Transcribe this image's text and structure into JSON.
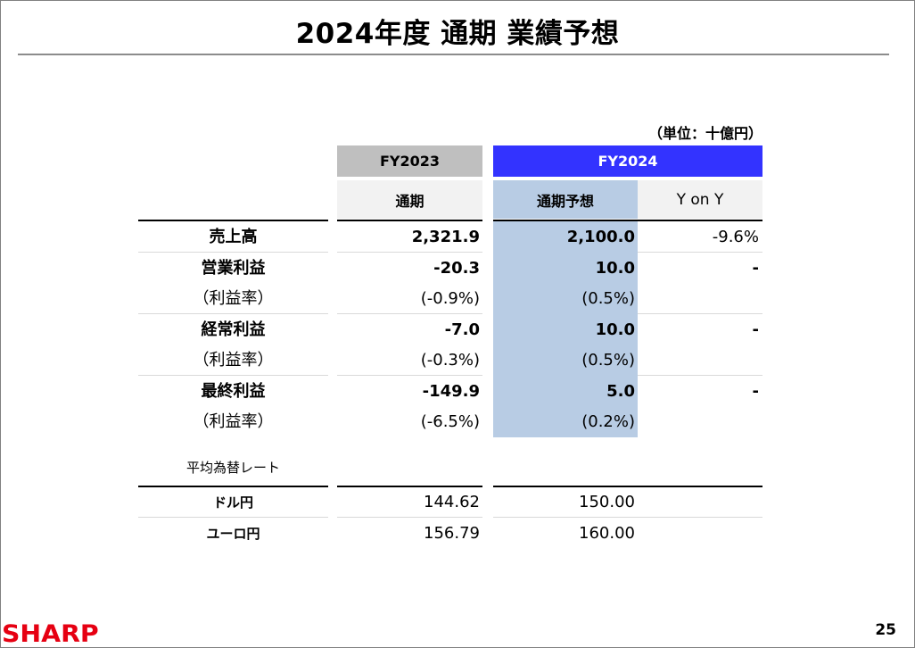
{
  "slide": {
    "title": "2024年度 通期 業績予想",
    "unit": "（単位：十億円）",
    "page_number": "25",
    "logo_text": "SHARP"
  },
  "columns": {
    "fy2023": "FY2023",
    "fy2024": "FY2024",
    "fy2023_sub": "通期",
    "fy2024_sub": "通期予想",
    "yoy": "Y on Y"
  },
  "rows": [
    {
      "label": "売上高",
      "fy2023": "2,321.9",
      "fy2024": "2,100.0",
      "yoy": "-9.6%",
      "bold": true
    },
    {
      "label": "営業利益",
      "fy2023": "-20.3",
      "fy2024": "10.0",
      "yoy": "-",
      "bold": true
    },
    {
      "label": "（利益率）",
      "fy2023": "(-0.9%)",
      "fy2024": "(0.5%)",
      "yoy": "",
      "bold": false
    },
    {
      "label": "経常利益",
      "fy2023": "-7.0",
      "fy2024": "10.0",
      "yoy": "-",
      "bold": true
    },
    {
      "label": "（利益率）",
      "fy2023": "(-0.3%)",
      "fy2024": "(0.5%)",
      "yoy": "",
      "bold": false
    },
    {
      "label": "最終利益",
      "fy2023": "-149.9",
      "fy2024": "5.0",
      "yoy": "-",
      "bold": true
    },
    {
      "label": "（利益率）",
      "fy2023": "(-6.5%)",
      "fy2024": "(0.2%)",
      "yoy": "",
      "bold": false
    }
  ],
  "fx": {
    "title": "平均為替レート",
    "rows": [
      {
        "label": "ドル円",
        "fy2023": "144.62",
        "fy2024": "150.00"
      },
      {
        "label": "ユーロ円",
        "fy2023": "156.79",
        "fy2024": "160.00"
      }
    ]
  },
  "colors": {
    "fy2023_header": "#bfbfbf",
    "fy2024_header": "#3333ff",
    "forecast_shade": "#b8cce4",
    "sub_header": "#f2f2f2",
    "logo": "#e60012"
  }
}
